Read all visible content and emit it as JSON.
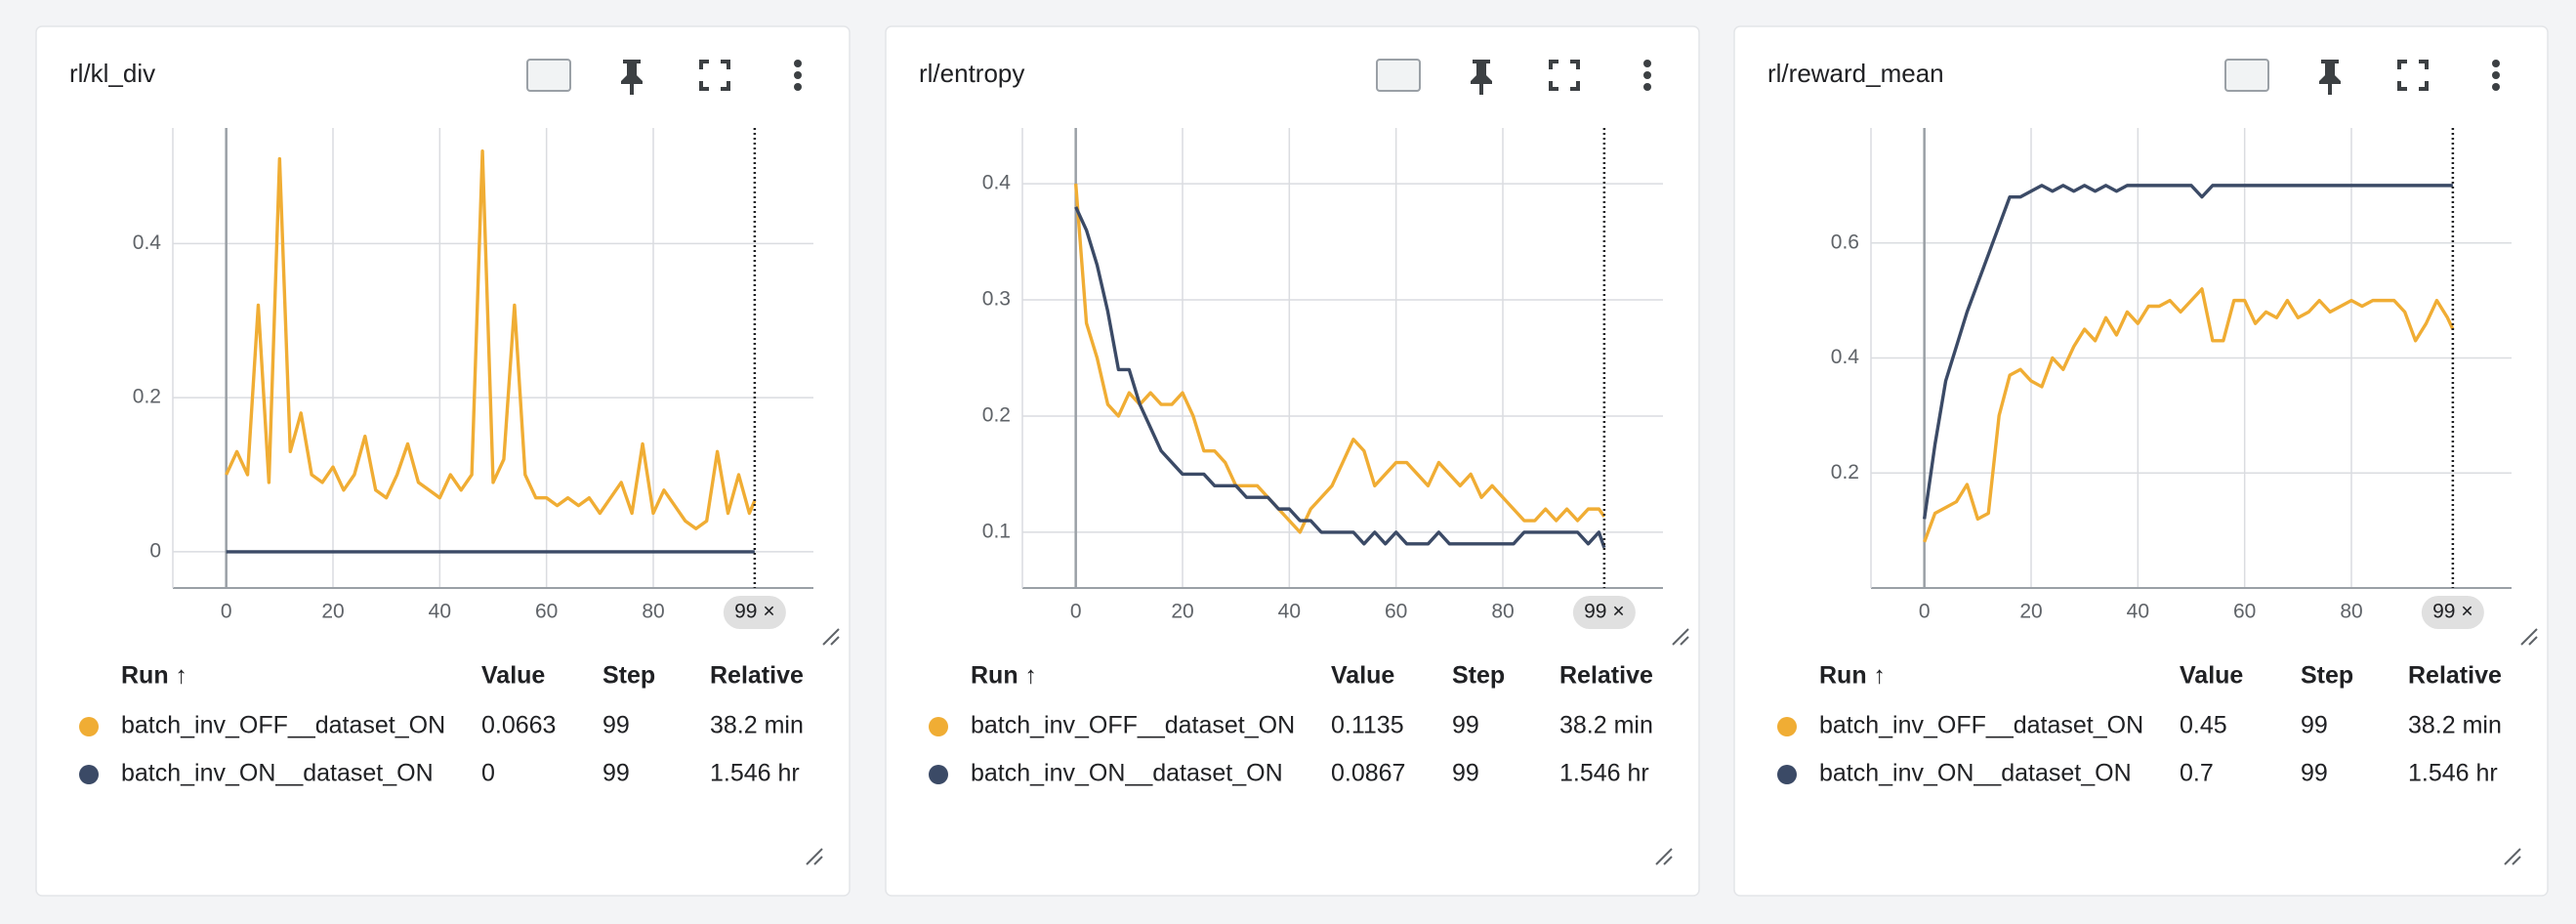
{
  "chart_data": [
    {
      "type": "line",
      "title": "rl/kl_div",
      "x": [
        0,
        2,
        4,
        6,
        8,
        10,
        12,
        14,
        16,
        18,
        20,
        22,
        24,
        26,
        28,
        30,
        32,
        34,
        36,
        38,
        40,
        42,
        44,
        46,
        48,
        50,
        52,
        54,
        56,
        58,
        60,
        62,
        64,
        66,
        68,
        70,
        72,
        74,
        76,
        78,
        80,
        82,
        84,
        86,
        88,
        90,
        92,
        94,
        96,
        98,
        99
      ],
      "series": [
        {
          "name": "batch_inv_OFF__dataset_ON",
          "color": "#f0ad34",
          "values": [
            0.1,
            0.13,
            0.1,
            0.32,
            0.09,
            0.51,
            0.13,
            0.18,
            0.1,
            0.09,
            0.11,
            0.08,
            0.1,
            0.15,
            0.08,
            0.07,
            0.1,
            0.14,
            0.09,
            0.08,
            0.07,
            0.1,
            0.08,
            0.1,
            0.52,
            0.09,
            0.12,
            0.32,
            0.1,
            0.07,
            0.07,
            0.06,
            0.07,
            0.06,
            0.07,
            0.05,
            0.07,
            0.09,
            0.05,
            0.14,
            0.05,
            0.08,
            0.06,
            0.04,
            0.03,
            0.04,
            0.13,
            0.05,
            0.1,
            0.05,
            0.0663
          ]
        },
        {
          "name": "batch_inv_ON__dataset_ON",
          "color": "#3b4a66",
          "values": [
            0,
            0,
            0,
            0,
            0,
            0,
            0,
            0,
            0,
            0,
            0,
            0,
            0,
            0,
            0,
            0,
            0,
            0,
            0,
            0,
            0,
            0,
            0,
            0,
            0,
            0,
            0,
            0,
            0,
            0,
            0,
            0,
            0,
            0,
            0,
            0,
            0,
            0,
            0,
            0,
            0,
            0,
            0,
            0,
            0,
            0,
            0,
            0,
            0,
            0,
            0
          ]
        }
      ],
      "xlim": [
        -10,
        110
      ],
      "ylim": [
        -0.047,
        0.55
      ],
      "xticks": [
        0,
        20,
        40,
        60,
        80
      ],
      "yticks": [
        0,
        0.2,
        0.4
      ],
      "grid": true,
      "cursor": {
        "value": 99,
        "label": "99 ×"
      },
      "table": {
        "columns": [
          "Run ↑",
          "Value",
          "Step",
          "Relative"
        ],
        "rows": [
          [
            "batch_inv_OFF__dataset_ON",
            0.0663,
            99,
            "38.2 min"
          ],
          [
            "batch_inv_ON__dataset_ON",
            0,
            99,
            "1.546 hr"
          ]
        ]
      }
    },
    {
      "type": "line",
      "title": "rl/entropy",
      "x": [
        0,
        2,
        4,
        6,
        8,
        10,
        12,
        14,
        16,
        18,
        20,
        22,
        24,
        26,
        28,
        30,
        32,
        34,
        36,
        38,
        40,
        42,
        44,
        46,
        48,
        50,
        52,
        54,
        56,
        58,
        60,
        62,
        64,
        66,
        68,
        70,
        72,
        74,
        76,
        78,
        80,
        82,
        84,
        86,
        88,
        90,
        92,
        94,
        96,
        98,
        99
      ],
      "series": [
        {
          "name": "batch_inv_OFF__dataset_ON",
          "color": "#f0ad34",
          "values": [
            0.4,
            0.28,
            0.25,
            0.21,
            0.2,
            0.22,
            0.21,
            0.22,
            0.21,
            0.21,
            0.22,
            0.2,
            0.17,
            0.17,
            0.16,
            0.14,
            0.14,
            0.14,
            0.13,
            0.12,
            0.11,
            0.1,
            0.12,
            0.13,
            0.14,
            0.16,
            0.18,
            0.17,
            0.14,
            0.15,
            0.16,
            0.16,
            0.15,
            0.14,
            0.16,
            0.15,
            0.14,
            0.15,
            0.13,
            0.14,
            0.13,
            0.12,
            0.11,
            0.11,
            0.12,
            0.11,
            0.12,
            0.11,
            0.12,
            0.12,
            0.1135
          ]
        },
        {
          "name": "batch_inv_ON__dataset_ON",
          "color": "#3b4a66",
          "values": [
            0.38,
            0.36,
            0.33,
            0.29,
            0.24,
            0.24,
            0.21,
            0.19,
            0.17,
            0.16,
            0.15,
            0.15,
            0.15,
            0.14,
            0.14,
            0.14,
            0.13,
            0.13,
            0.13,
            0.12,
            0.12,
            0.11,
            0.11,
            0.1,
            0.1,
            0.1,
            0.1,
            0.09,
            0.1,
            0.09,
            0.1,
            0.09,
            0.09,
            0.09,
            0.1,
            0.09,
            0.09,
            0.09,
            0.09,
            0.09,
            0.09,
            0.09,
            0.1,
            0.1,
            0.1,
            0.1,
            0.1,
            0.1,
            0.09,
            0.1,
            0.0867
          ]
        }
      ],
      "xlim": [
        -10,
        110
      ],
      "ylim": [
        0.052,
        0.448
      ],
      "xticks": [
        0,
        20,
        40,
        60,
        80
      ],
      "yticks": [
        0.1,
        0.2,
        0.3,
        0.4
      ],
      "grid": true,
      "cursor": {
        "value": 99,
        "label": "99 ×"
      },
      "table": {
        "columns": [
          "Run ↑",
          "Value",
          "Step",
          "Relative"
        ],
        "rows": [
          [
            "batch_inv_OFF__dataset_ON",
            0.1135,
            99,
            "38.2 min"
          ],
          [
            "batch_inv_ON__dataset_ON",
            0.0867,
            99,
            "1.546 hr"
          ]
        ]
      }
    },
    {
      "type": "line",
      "title": "rl/reward_mean",
      "x": [
        0,
        2,
        4,
        6,
        8,
        10,
        12,
        14,
        16,
        18,
        20,
        22,
        24,
        26,
        28,
        30,
        32,
        34,
        36,
        38,
        40,
        42,
        44,
        46,
        48,
        50,
        52,
        54,
        56,
        58,
        60,
        62,
        64,
        66,
        68,
        70,
        72,
        74,
        76,
        78,
        80,
        82,
        84,
        86,
        88,
        90,
        92,
        94,
        96,
        98,
        99
      ],
      "series": [
        {
          "name": "batch_inv_OFF__dataset_ON",
          "color": "#f0ad34",
          "values": [
            0.08,
            0.13,
            0.14,
            0.15,
            0.18,
            0.12,
            0.13,
            0.3,
            0.37,
            0.38,
            0.36,
            0.35,
            0.4,
            0.38,
            0.42,
            0.45,
            0.43,
            0.47,
            0.44,
            0.48,
            0.46,
            0.49,
            0.49,
            0.5,
            0.48,
            0.5,
            0.52,
            0.43,
            0.43,
            0.5,
            0.5,
            0.46,
            0.48,
            0.47,
            0.5,
            0.47,
            0.48,
            0.5,
            0.48,
            0.49,
            0.5,
            0.49,
            0.5,
            0.5,
            0.5,
            0.48,
            0.43,
            0.46,
            0.5,
            0.47,
            0.45
          ]
        },
        {
          "name": "batch_inv_ON__dataset_ON",
          "color": "#3b4a66",
          "values": [
            0.12,
            0.25,
            0.36,
            0.42,
            0.48,
            0.53,
            0.58,
            0.63,
            0.68,
            0.68,
            0.69,
            0.7,
            0.69,
            0.7,
            0.69,
            0.7,
            0.69,
            0.7,
            0.69,
            0.7,
            0.7,
            0.7,
            0.7,
            0.7,
            0.7,
            0.7,
            0.68,
            0.7,
            0.7,
            0.7,
            0.7,
            0.7,
            0.7,
            0.7,
            0.7,
            0.7,
            0.7,
            0.7,
            0.7,
            0.7,
            0.7,
            0.7,
            0.7,
            0.7,
            0.7,
            0.7,
            0.7,
            0.7,
            0.7,
            0.7,
            0.7
          ]
        }
      ],
      "xlim": [
        -10,
        110
      ],
      "ylim": [
        0,
        0.8
      ],
      "xticks": [
        0,
        20,
        40,
        60,
        80
      ],
      "yticks": [
        0.2,
        0.4,
        0.6
      ],
      "grid": true,
      "cursor": {
        "value": 99,
        "label": "99 ×"
      },
      "table": {
        "columns": [
          "Run ↑",
          "Value",
          "Step",
          "Relative"
        ],
        "rows": [
          [
            "batch_inv_OFF__dataset_ON",
            0.45,
            99,
            "38.2 min"
          ],
          [
            "batch_inv_ON__dataset_ON",
            0.7,
            99,
            "1.546 hr"
          ]
        ]
      }
    }
  ]
}
